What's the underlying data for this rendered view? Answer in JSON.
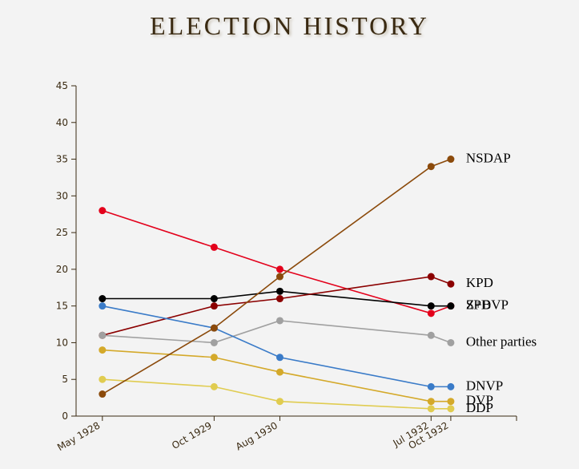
{
  "chart_data": {
    "type": "line",
    "title": "ELECTION HISTORY",
    "x": [
      "May 1928",
      "Oct 1929",
      "Aug 1930",
      "Jul 1932",
      "Oct 1932"
    ],
    "xlim": [
      "Jan 1928",
      "Aug 1933"
    ],
    "ylim": [
      0,
      45
    ],
    "yticks": [
      0,
      5,
      10,
      15,
      20,
      25,
      30,
      35,
      40,
      45
    ],
    "series": [
      {
        "name": "SPD",
        "color": "#e3001b",
        "values": [
          28,
          23,
          20,
          14,
          15
        ]
      },
      {
        "name": "Z+BVP",
        "color": "#000000",
        "values": [
          16,
          16,
          17,
          15,
          15
        ]
      },
      {
        "name": "KPD",
        "color": "#8b0000",
        "values": [
          11,
          15,
          16,
          19,
          18
        ]
      },
      {
        "name": "Other parties",
        "color": "#a0a0a0",
        "values": [
          11,
          10,
          13,
          11,
          10
        ]
      },
      {
        "name": "DNVP",
        "color": "#3a7bc8",
        "values": [
          15,
          12,
          8,
          4,
          4
        ]
      },
      {
        "name": "DVP",
        "color": "#d4a92a",
        "values": [
          9,
          8,
          6,
          2,
          2
        ]
      },
      {
        "name": "DDP",
        "color": "#e0cc50",
        "values": [
          5,
          4,
          2,
          1,
          1
        ]
      },
      {
        "name": "NSDAP",
        "color": "#8b4a0b",
        "values": [
          3,
          12,
          19,
          34,
          35
        ]
      }
    ]
  }
}
